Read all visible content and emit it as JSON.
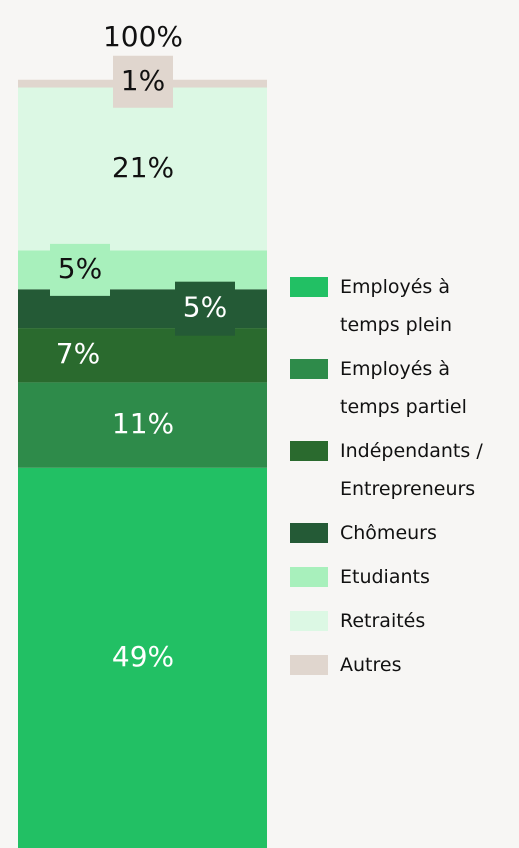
{
  "chart_data": {
    "type": "stacked_bar",
    "total": 100,
    "total_label": "100%",
    "series": [
      {
        "name": "Employés à temps plein",
        "color": "#22c064",
        "values": [
          49
        ],
        "value_labels": [
          "49%"
        ]
      },
      {
        "name": "Employés à temps partiel",
        "color": "#2e8b4a",
        "values": [
          11
        ],
        "value_labels": [
          "11%"
        ]
      },
      {
        "name": "Indépendants / Entrepreneurs",
        "color": "#2a6a2e",
        "values": [
          7
        ],
        "value_labels": [
          "7%"
        ]
      },
      {
        "name": "Chômeurs",
        "color": "#245a36",
        "values": [
          5
        ],
        "value_labels": [
          "5%"
        ]
      },
      {
        "name": "Etudiants",
        "color": "#a8f0bc",
        "values": [
          5
        ],
        "value_labels": [
          "5%"
        ]
      },
      {
        "name": "Retraités",
        "color": "#dcf8e4",
        "values": [
          21
        ],
        "value_labels": [
          "21%"
        ]
      },
      {
        "name": "Autres",
        "color": "#e0d6ce",
        "values": [
          1
        ],
        "value_labels": [
          "1%"
        ]
      }
    ]
  }
}
